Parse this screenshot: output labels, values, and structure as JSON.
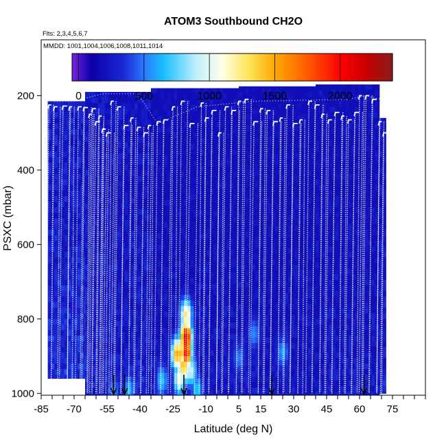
{
  "chart_data": {
    "type": "heatmap",
    "title": "ATOM3 Southbound CH2O",
    "flights_label": "Flts: 2,3,4,5,6,7",
    "mmdd_label": "MMDD: 1001,1004,1006,1008,1011,1014",
    "xlabel": "Latitude (deg N)",
    "ylabel": "PSXC (mbar)",
    "xlim": [
      -85,
      90
    ],
    "ylim": [
      1005,
      50
    ],
    "x_ticks": [
      -85,
      -70,
      -55,
      -40,
      -25,
      -10,
      5,
      15,
      30,
      45,
      60,
      75
    ],
    "y_ticks": [
      200,
      400,
      600,
      800,
      1000
    ],
    "colorbar": {
      "min": -50,
      "max": 2400,
      "ticks": [
        0,
        500,
        1000,
        1500,
        2000
      ],
      "stops": [
        {
          "value": -50,
          "color": "#7a20e0"
        },
        {
          "value": 100,
          "color": "#0a00a8"
        },
        {
          "value": 350,
          "color": "#1b2bd6"
        },
        {
          "value": 500,
          "color": "#2a78ff"
        },
        {
          "value": 650,
          "color": "#18c0ff"
        },
        {
          "value": 900,
          "color": "#c2eeff"
        },
        {
          "value": 1100,
          "color": "#ffffe6"
        },
        {
          "value": 1300,
          "color": "#ffe45a"
        },
        {
          "value": 1500,
          "color": "#ffaa00"
        },
        {
          "value": 1800,
          "color": "#ff4a00"
        },
        {
          "value": 2000,
          "color": "#ff0000"
        },
        {
          "value": 2200,
          "color": "#c80000"
        },
        {
          "value": 2400,
          "color": "#8a1c1c"
        }
      ]
    },
    "background_level": 180,
    "flight_segments": [
      {
        "lat_start": -82,
        "lat_end": -65,
        "p_top": 215,
        "p_bottom": 960,
        "value": 260
      },
      {
        "lat_start": -65,
        "lat_end": -35,
        "p_top": 190,
        "p_bottom": 1005,
        "value": 200
      },
      {
        "lat_start": -35,
        "lat_end": 5,
        "p_top": 180,
        "p_bottom": 1005,
        "value": 150
      },
      {
        "lat_start": 5,
        "lat_end": 40,
        "p_top": 175,
        "p_bottom": 1005,
        "value": 140
      },
      {
        "lat_start": 40,
        "lat_end": 69,
        "p_top": 170,
        "p_bottom": 1005,
        "value": 160
      },
      {
        "lat_start": 69,
        "lat_end": 72,
        "p_top": 260,
        "p_bottom": 1000,
        "value": 190
      }
    ],
    "hotspots": [
      {
        "lat": -19,
        "p": 790,
        "value": 1300
      },
      {
        "lat": -19,
        "p": 850,
        "value": 2200
      },
      {
        "lat": -19,
        "p": 890,
        "value": 2100
      },
      {
        "lat": -23,
        "p": 895,
        "value": 1600
      },
      {
        "lat": -20,
        "p": 925,
        "value": 1500
      },
      {
        "lat": -22,
        "p": 960,
        "value": 1150
      },
      {
        "lat": -17,
        "p": 940,
        "value": 1000
      },
      {
        "lat": -14,
        "p": 990,
        "value": 700
      },
      {
        "lat": -30,
        "p": 965,
        "value": 700
      },
      {
        "lat": -45,
        "p": 990,
        "value": 650
      },
      {
        "lat": 12,
        "p": 840,
        "value": 550
      },
      {
        "lat": 25,
        "p": 890,
        "value": 600
      },
      {
        "lat": 5,
        "p": 905,
        "value": 520
      },
      {
        "lat": -52,
        "p": 1000,
        "value": 550
      }
    ],
    "profiles_lat": [
      -81.5,
      -79,
      -75,
      -72,
      -68,
      -65.5,
      -63,
      -61.5,
      -60,
      -58.5,
      -57,
      -55,
      -53,
      -50,
      -47,
      -44,
      -41,
      -38,
      -36,
      -32,
      -29,
      -25,
      -21,
      -17,
      -12,
      -10,
      -7,
      -4,
      -1,
      2,
      5,
      8,
      12,
      15,
      18,
      21,
      24,
      27,
      30,
      33,
      37,
      40,
      43,
      46,
      49,
      52,
      55,
      58,
      60,
      63,
      66,
      69,
      71
    ],
    "profiles_top": [
      225,
      230,
      228,
      230,
      230,
      232,
      250,
      235,
      270,
      255,
      290,
      300,
      215,
      230,
      280,
      260,
      285,
      300,
      280,
      270,
      265,
      230,
      215,
      275,
      220,
      260,
      240,
      300,
      230,
      240,
      215,
      210,
      270,
      235,
      240,
      270,
      260,
      225,
      275,
      265,
      215,
      225,
      250,
      265,
      245,
      255,
      265,
      245,
      200,
      200,
      210,
      270,
      300
    ],
    "aircraft_track": [
      {
        "lat": -79,
        "p": 215
      },
      {
        "lat": -70,
        "p": 215
      },
      {
        "lat": -57,
        "p": 195
      },
      {
        "lat": -41,
        "p": 195
      },
      {
        "lat": -32,
        "p": 275
      },
      {
        "lat": -14,
        "p": 230
      },
      {
        "lat": 12,
        "p": 215
      },
      {
        "lat": 55,
        "p": 210
      },
      {
        "lat": 63,
        "p": 200
      },
      {
        "lat": 70,
        "p": 210
      }
    ],
    "takeoff_landing_arrows": [
      -52,
      -47,
      -20,
      20,
      62
    ]
  }
}
